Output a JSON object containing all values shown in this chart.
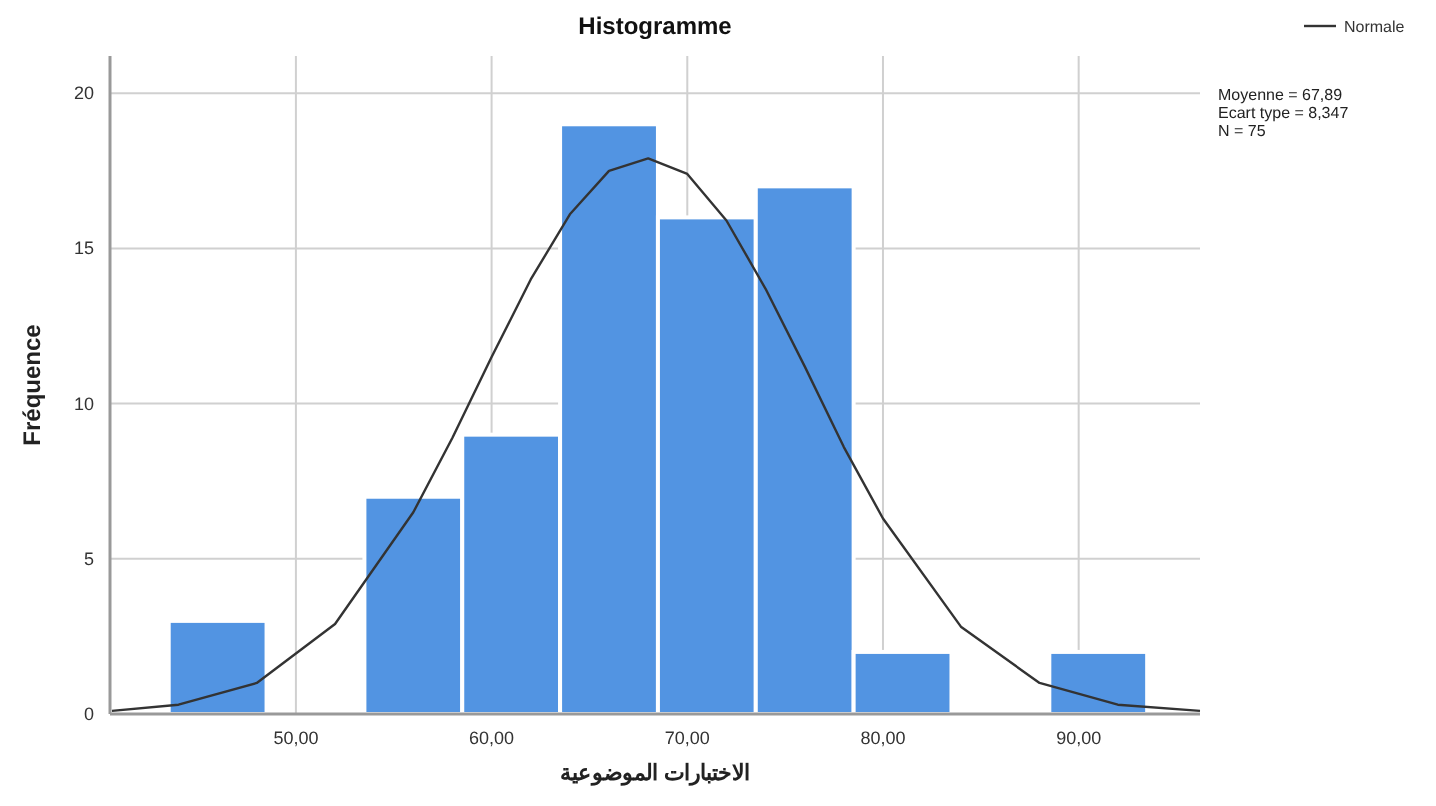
{
  "chart_data": {
    "type": "histogram",
    "title": "Histogramme",
    "xlabel": "الاختبارات الموضوعية",
    "ylabel": "Fréquence",
    "bins": [
      43.5,
      48.5,
      53.5,
      58.5,
      63.5,
      68.5,
      73.5,
      78.5,
      83.5,
      88.5,
      93.5
    ],
    "series": [
      {
        "color": "#5294e2",
        "values": [
          3,
          0,
          7,
          9,
          19,
          16,
          17,
          2,
          0,
          2
        ]
      },
      {
        "type": "line",
        "name": "Normale",
        "color": "#333333",
        "x": [
          40.6,
          44,
          48,
          52,
          56,
          58,
          60,
          62,
          64,
          66,
          68,
          70,
          72,
          74,
          76,
          78,
          80,
          84,
          88,
          92,
          96.2
        ],
        "values": [
          0.1,
          0.3,
          1.0,
          2.9,
          6.5,
          8.9,
          11.5,
          14.0,
          16.1,
          17.5,
          17.9,
          17.4,
          15.9,
          13.7,
          11.2,
          8.6,
          6.3,
          2.8,
          1.0,
          0.3,
          0.1
        ]
      }
    ],
    "xlim": [
      40.5,
      96.2
    ],
    "ylim": [
      0,
      21.2
    ],
    "xticks": [
      {
        "value": 50,
        "label": "50,00"
      },
      {
        "value": 60,
        "label": "60,00"
      },
      {
        "value": 70,
        "label": "70,00"
      },
      {
        "value": 80,
        "label": "80,00"
      },
      {
        "value": 90,
        "label": "90,00"
      }
    ],
    "yticks": [
      0,
      5,
      10,
      15,
      20
    ],
    "grid": true,
    "legend": "top right",
    "annotations": [
      "Moyenne = 67,89",
      "Ecart type = 8,347",
      "N = 75"
    ]
  }
}
